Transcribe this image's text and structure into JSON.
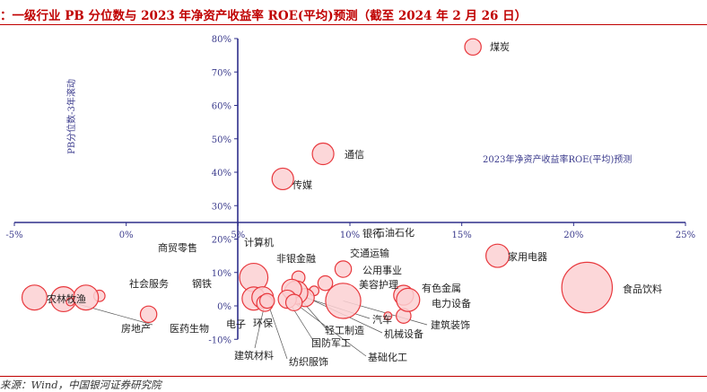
{
  "header": {
    "title": "：一级行业 PB 分位数与 2023 年净资产收益率 ROE(平均)预测（截至 2024 年 2 月 26 日）",
    "source": "来源：Wind，中国银河证券研究院"
  },
  "chart_data": {
    "type": "scatter",
    "xlabel": "2023年净资产收益率ROE(平均)预测",
    "ylabel": "PB分位数-3年滚动",
    "xlim": [
      -0.05,
      0.25
    ],
    "ylim": [
      -0.1,
      0.8
    ],
    "x_ticks": [
      "-5%",
      "0%",
      "5%",
      "10%",
      "15%",
      "20%",
      "25%"
    ],
    "y_ticks": [
      "-10%",
      "0%",
      "10%",
      "20%",
      "30%",
      "40%",
      "50%",
      "60%",
      "70%",
      "80%"
    ],
    "y_tick_values": [
      -0.1,
      0,
      0.1,
      0.2,
      0.3,
      0.4,
      0.5,
      0.6,
      0.7,
      0.8
    ],
    "colors": {
      "axis": "#2e2e8a",
      "bubble_stroke": "#e8383d",
      "bubble_fill": "#fbd0d2",
      "title": "#c00000"
    },
    "points": [
      {
        "name": "煤炭",
        "x": 0.155,
        "y": 0.775,
        "size": 7
      },
      {
        "name": "通信",
        "x": 0.088,
        "y": 0.455,
        "size": 10
      },
      {
        "name": "传媒",
        "x": 0.07,
        "y": 0.38,
        "size": 10
      },
      {
        "name": "银行",
        "x": 0.117,
        "y": -0.03,
        "size": 2
      },
      {
        "name": "石油石化",
        "x": 0.124,
        "y": -0.03,
        "size": 6
      },
      {
        "name": "商贸零售",
        "x": 0.01,
        "y": -0.025,
        "size": 7
      },
      {
        "name": "家用电器",
        "x": 0.166,
        "y": 0.15,
        "size": 11
      },
      {
        "name": "食品饮料",
        "x": 0.206,
        "y": 0.055,
        "size": 27
      },
      {
        "name": "计算机",
        "x": 0.057,
        "y": 0.085,
        "size": 14
      },
      {
        "name": "非银金融",
        "x": 0.077,
        "y": 0.085,
        "size": 5
      },
      {
        "name": "交通运输",
        "x": 0.097,
        "y": 0.11,
        "size": 7
      },
      {
        "name": "公用事业",
        "x": 0.089,
        "y": 0.068,
        "size": 6
      },
      {
        "name": "美容护理",
        "x": 0.084,
        "y": 0.045,
        "size": 3
      },
      {
        "name": "有色金属",
        "x": 0.124,
        "y": 0.032,
        "size": 9
      },
      {
        "name": "电力设备",
        "x": 0.126,
        "y": 0.018,
        "size": 11
      },
      {
        "name": "建筑装饰",
        "x": 0.097,
        "y": 0.015,
        "size": 18
      },
      {
        "name": "汽车",
        "x": 0.08,
        "y": 0.025,
        "size": 8
      },
      {
        "name": "机械设备",
        "x": 0.076,
        "y": 0.04,
        "size": 11
      },
      {
        "name": "轻工制造",
        "x": 0.074,
        "y": 0.05,
        "size": 9
      },
      {
        "name": "国防军工",
        "x": 0.072,
        "y": 0.02,
        "size": 8
      },
      {
        "name": "基础化工",
        "x": 0.075,
        "y": 0.01,
        "size": 7
      },
      {
        "name": "农林牧渔",
        "x": -0.041,
        "y": 0.025,
        "size": 12
      },
      {
        "name": "社会服务",
        "x": -0.028,
        "y": 0.02,
        "size": 12
      },
      {
        "name": "钢铁",
        "x": -0.012,
        "y": 0.03,
        "size": 4
      },
      {
        "name": "房地产",
        "x": -0.025,
        "y": 0.012,
        "size": 2
      },
      {
        "name": "医药生物",
        "x": -0.018,
        "y": 0.025,
        "size": 12
      },
      {
        "name": "电子",
        "x": 0.057,
        "y": 0.022,
        "size": 11
      },
      {
        "name": "环保",
        "x": 0.061,
        "y": 0.025,
        "size": 10
      },
      {
        "name": "建筑材料",
        "x": 0.062,
        "y": 0.008,
        "size": 7
      },
      {
        "name": "纺织服饰",
        "x": 0.063,
        "y": 0.015,
        "size": 6
      }
    ]
  }
}
